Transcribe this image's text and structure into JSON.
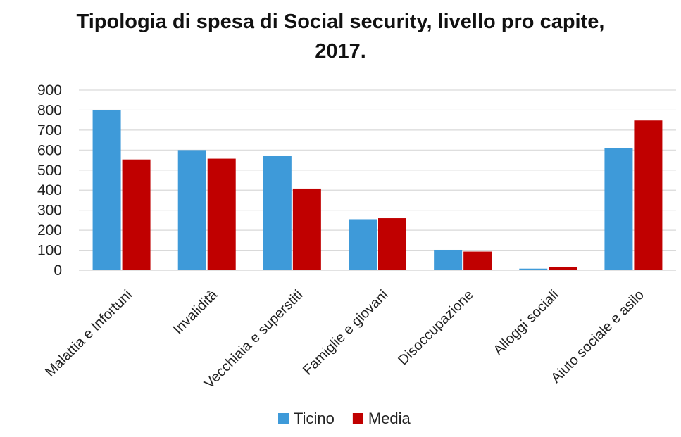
{
  "chart_data": {
    "type": "bar",
    "title_line1": "Tipologia di spesa di Social security, livello pro capite,",
    "title_line2": "2017.",
    "xlabel": "",
    "ylabel": "",
    "ylim": [
      0,
      900
    ],
    "yticks": [
      "0",
      "100",
      "200",
      "300",
      "400",
      "500",
      "600",
      "700",
      "800",
      "900"
    ],
    "grid": true,
    "legend_position": "bottom",
    "categories": [
      "Malattia e Infortuni",
      "Invalidità",
      "Vecchiaia e superstiti",
      "Famiglie e giovani",
      "Disoccupazione",
      "Alloggi sociali",
      "Aiuto sociale e asilo"
    ],
    "series": [
      {
        "name": "Ticino",
        "color": "#3e9ad9",
        "values": [
          800,
          600,
          570,
          255,
          102,
          8,
          610
        ]
      },
      {
        "name": "Media",
        "color": "#c00000",
        "values": [
          553,
          557,
          408,
          260,
          93,
          17,
          748
        ]
      }
    ]
  }
}
